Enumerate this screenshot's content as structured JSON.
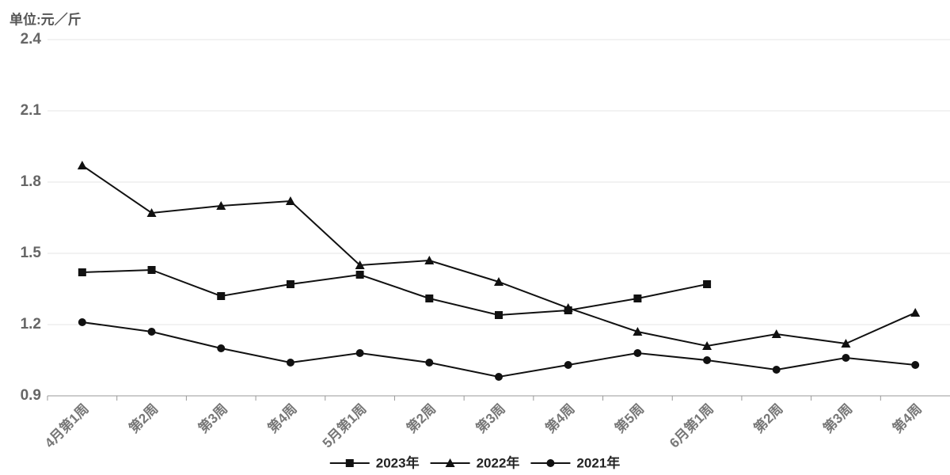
{
  "chart_data": {
    "type": "line",
    "unit_label": "单位:元／斤",
    "categories": [
      "4月第1周",
      "第2周",
      "第3周",
      "第4周",
      "5月第1周",
      "第2周",
      "第3周",
      "第4周",
      "第5周",
      "6月第1周",
      "第2周",
      "第3周",
      "第4周"
    ],
    "series": [
      {
        "name": "2023年",
        "color": "#111111",
        "marker": "square",
        "values": [
          1.42,
          1.43,
          1.32,
          1.37,
          1.41,
          1.31,
          1.24,
          1.26,
          1.31,
          1.37,
          null,
          null,
          null
        ]
      },
      {
        "name": "2022年",
        "color": "#111111",
        "marker": "triangle",
        "values": [
          1.87,
          1.67,
          1.7,
          1.72,
          1.45,
          1.47,
          1.38,
          1.27,
          1.17,
          1.11,
          1.16,
          1.12,
          1.25
        ]
      },
      {
        "name": "2021年",
        "color": "#111111",
        "marker": "circle",
        "values": [
          1.21,
          1.17,
          1.1,
          1.04,
          1.08,
          1.04,
          0.98,
          1.03,
          1.08,
          1.05,
          1.01,
          1.06,
          1.03
        ]
      }
    ],
    "ylim": [
      0.9,
      2.4
    ],
    "yticks": [
      0.9,
      1.2,
      1.5,
      1.8,
      2.1,
      2.4
    ],
    "grid": true,
    "legend": "bottom"
  }
}
